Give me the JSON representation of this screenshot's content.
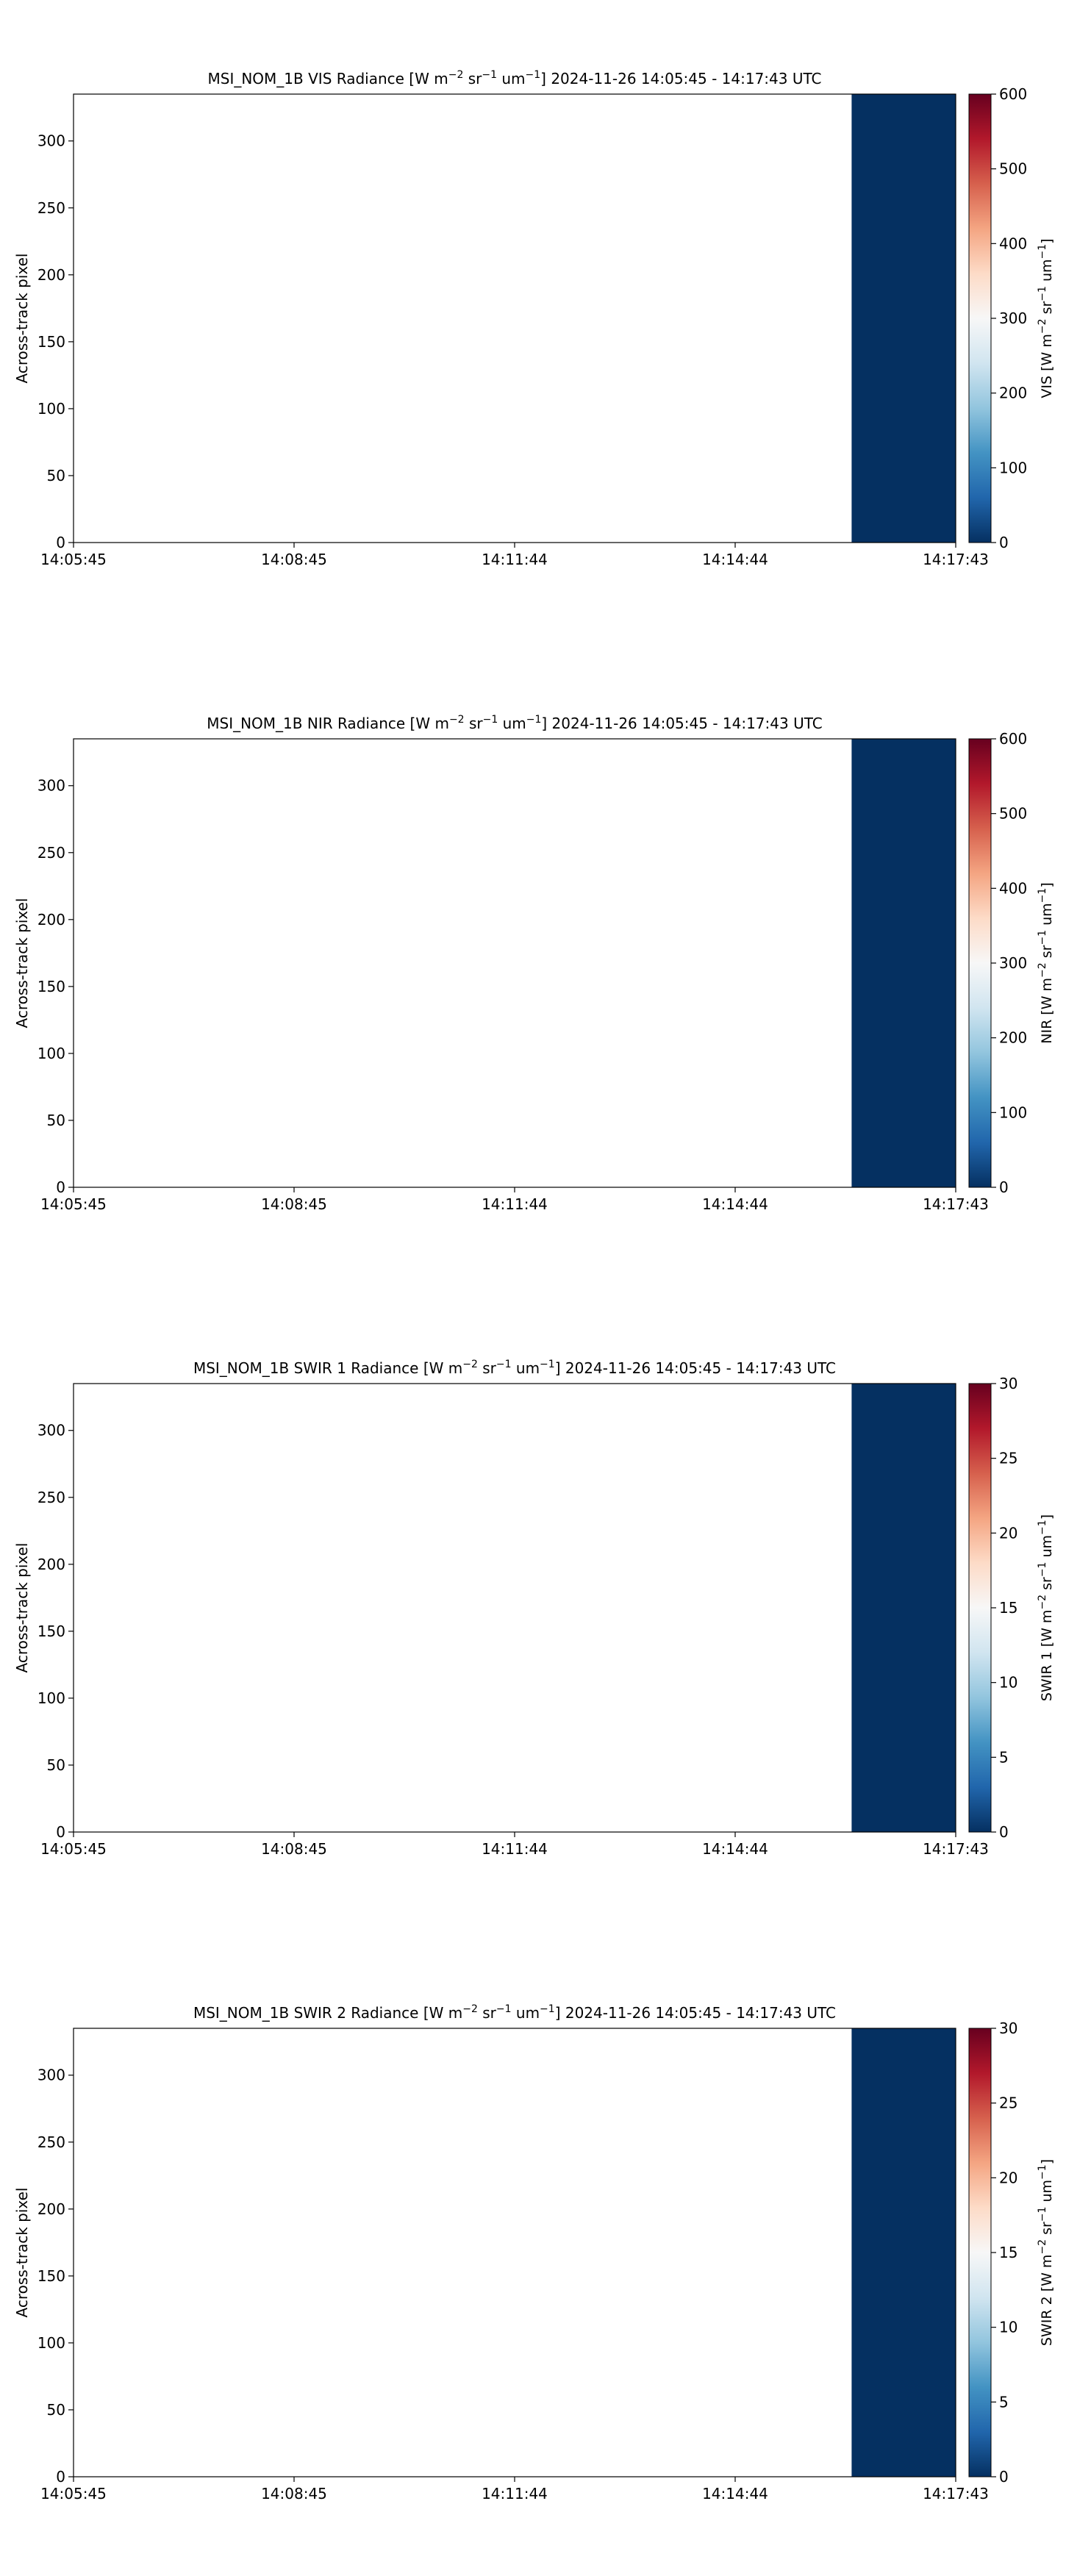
{
  "chart_data": [
    {
      "type": "heatmap",
      "title_parts": {
        "prefix": "MSI_NOM_1B VIS Radiance [W m",
        "exp1": "−2",
        "mid1": " sr",
        "exp2": "−1",
        "mid2": " um",
        "exp3": "−1",
        "suffix": "]    2024-11-26    14:05:45 - 14:17:43 UTC"
      },
      "xlabel": "",
      "ylabel": "Across-track pixel",
      "x_ticks": [
        "14:05:45",
        "14:08:45",
        "14:11:44",
        "14:14:44",
        "14:17:43"
      ],
      "y_ticks": [
        0,
        50,
        100,
        150,
        200,
        250,
        300
      ],
      "ylim": [
        0,
        335
      ],
      "data_region": {
        "x_start_fraction": 0.882,
        "x_end_fraction": 1.0,
        "value": 0,
        "color": "#053061"
      },
      "colorbar": {
        "label_parts": {
          "prefix": "VIS [W m",
          "exp1": "−2",
          "mid1": " sr",
          "exp2": "−1",
          "mid2": " um",
          "exp3": "−1",
          "suffix": "]"
        },
        "ticks": [
          0,
          100,
          200,
          300,
          400,
          500,
          600
        ],
        "range": [
          0,
          600
        ],
        "colormap": "RdBu_r"
      }
    },
    {
      "type": "heatmap",
      "title_parts": {
        "prefix": "MSI_NOM_1B NIR Radiance [W m",
        "exp1": "−2",
        "mid1": " sr",
        "exp2": "−1",
        "mid2": " um",
        "exp3": "−1",
        "suffix": "]    2024-11-26    14:05:45 - 14:17:43 UTC"
      },
      "xlabel": "",
      "ylabel": "Across-track pixel",
      "x_ticks": [
        "14:05:45",
        "14:08:45",
        "14:11:44",
        "14:14:44",
        "14:17:43"
      ],
      "y_ticks": [
        0,
        50,
        100,
        150,
        200,
        250,
        300
      ],
      "ylim": [
        0,
        335
      ],
      "data_region": {
        "x_start_fraction": 0.882,
        "x_end_fraction": 1.0,
        "value": 0,
        "color": "#053061"
      },
      "colorbar": {
        "label_parts": {
          "prefix": "NIR [W m",
          "exp1": "−2",
          "mid1": " sr",
          "exp2": "−1",
          "mid2": " um",
          "exp3": "−1",
          "suffix": "]"
        },
        "ticks": [
          0,
          100,
          200,
          300,
          400,
          500,
          600
        ],
        "range": [
          0,
          600
        ],
        "colormap": "RdBu_r"
      }
    },
    {
      "type": "heatmap",
      "title_parts": {
        "prefix": "MSI_NOM_1B SWIR 1 Radiance [W m",
        "exp1": "−2",
        "mid1": " sr",
        "exp2": "−1",
        "mid2": " um",
        "exp3": "−1",
        "suffix": "]    2024-11-26    14:05:45 - 14:17:43 UTC"
      },
      "xlabel": "",
      "ylabel": "Across-track pixel",
      "x_ticks": [
        "14:05:45",
        "14:08:45",
        "14:11:44",
        "14:14:44",
        "14:17:43"
      ],
      "y_ticks": [
        0,
        50,
        100,
        150,
        200,
        250,
        300
      ],
      "ylim": [
        0,
        335
      ],
      "data_region": {
        "x_start_fraction": 0.882,
        "x_end_fraction": 1.0,
        "value": 0,
        "color": "#053061"
      },
      "colorbar": {
        "label_parts": {
          "prefix": "SWIR 1 [W m",
          "exp1": "−2",
          "mid1": " sr",
          "exp2": "−1",
          "mid2": " um",
          "exp3": "−1",
          "suffix": "]"
        },
        "ticks": [
          0,
          5,
          10,
          15,
          20,
          25,
          30
        ],
        "range": [
          0,
          30
        ],
        "colormap": "RdBu_r"
      }
    },
    {
      "type": "heatmap",
      "title_parts": {
        "prefix": "MSI_NOM_1B SWIR 2 Radiance [W m",
        "exp1": "−2",
        "mid1": " sr",
        "exp2": "−1",
        "mid2": " um",
        "exp3": "−1",
        "suffix": "]    2024-11-26    14:05:45 - 14:17:43 UTC"
      },
      "xlabel": "",
      "ylabel": "Across-track pixel",
      "x_ticks": [
        "14:05:45",
        "14:08:45",
        "14:11:44",
        "14:14:44",
        "14:17:43"
      ],
      "y_ticks": [
        0,
        50,
        100,
        150,
        200,
        250,
        300
      ],
      "ylim": [
        0,
        335
      ],
      "data_region": {
        "x_start_fraction": 0.882,
        "x_end_fraction": 1.0,
        "value": 0,
        "color": "#053061"
      },
      "colorbar": {
        "label_parts": {
          "prefix": "SWIR 2 [W m",
          "exp1": "−2",
          "mid1": " sr",
          "exp2": "−1",
          "mid2": " um",
          "exp3": "−1",
          "suffix": "]"
        },
        "ticks": [
          0,
          5,
          10,
          15,
          20,
          25,
          30
        ],
        "range": [
          0,
          30
        ],
        "colormap": "RdBu_r"
      }
    }
  ],
  "colors": {
    "colormap_stops": [
      "#053061",
      "#2166ac",
      "#4393c3",
      "#92c5de",
      "#d1e5f0",
      "#f7f7f7",
      "#fddbc7",
      "#f4a582",
      "#d6604d",
      "#b2182b",
      "#67001f"
    ],
    "axis": "#000000",
    "background": "#ffffff"
  }
}
